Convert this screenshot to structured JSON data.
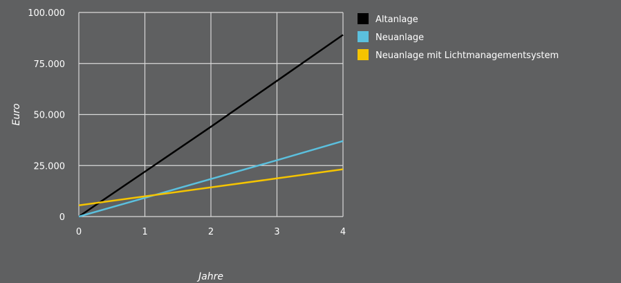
{
  "chart_data": {
    "type": "line",
    "title": "",
    "xlabel": "Jahre",
    "ylabel": "Euro",
    "x": [
      0,
      1,
      2,
      3,
      4
    ],
    "xlim": [
      0,
      4
    ],
    "ylim": [
      0,
      100000
    ],
    "x_ticks": [
      "0",
      "1",
      "2",
      "3",
      "4"
    ],
    "y_ticks": [
      "0",
      "25.000",
      "50.000",
      "75.000",
      "100.000"
    ],
    "y_tick_values": [
      0,
      25000,
      50000,
      75000,
      100000
    ],
    "grid": true,
    "legend_position": "right",
    "series": [
      {
        "name": "Altanlage",
        "color": "#000000",
        "values": [
          0,
          22000,
          44000,
          66500,
          89000
        ]
      },
      {
        "name": "Neuanlage",
        "color": "#5bc0de",
        "values": [
          0,
          9200,
          18400,
          27600,
          37000
        ]
      },
      {
        "name": "Neuanlage mit Lichtmanagementsystem",
        "color": "#f5c400",
        "values": [
          5500,
          9900,
          14300,
          18700,
          23200
        ]
      }
    ]
  },
  "colors": {
    "background": "#5f6061",
    "grid": "#d9d9d9",
    "text": "#ffffff"
  }
}
